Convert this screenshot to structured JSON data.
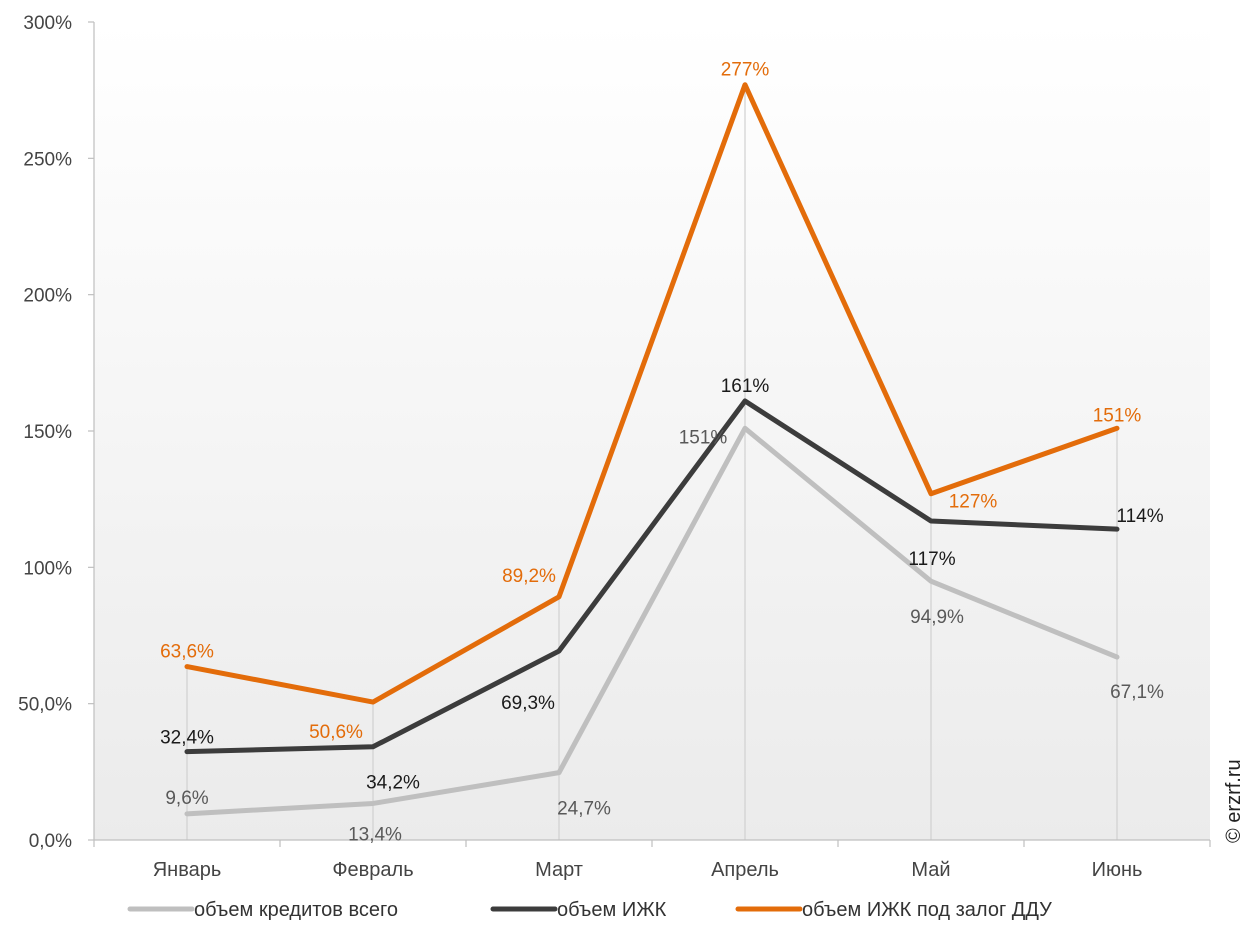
{
  "chart_data": {
    "type": "line",
    "categories": [
      "Январь",
      "Февраль",
      "Март",
      "Апрель",
      "Май",
      "Июнь"
    ],
    "ylim": [
      0,
      300
    ],
    "ytick_values": [
      0,
      50,
      100,
      150,
      200,
      250,
      300
    ],
    "ytick_labels": [
      "0,0%",
      "50,0%",
      "100%",
      "150%",
      "200%",
      "250%",
      "300%"
    ],
    "grid": false,
    "legend_position": "bottom",
    "series": [
      {
        "name": "объем кредитов всего",
        "color": "#bfbfbf",
        "values": [
          9.6,
          13.4,
          24.7,
          151,
          94.9,
          67.1
        ],
        "labels": [
          "9,6%",
          "13,4%",
          "24,7%",
          "151%",
          "94,9%",
          "67,1%"
        ],
        "label_color": "#595959"
      },
      {
        "name": "объем ИЖК",
        "color": "#3c3c3c",
        "values": [
          32.4,
          34.2,
          69.3,
          161,
          117,
          114
        ],
        "labels": [
          "32,4%",
          "34,2%",
          "69,3%",
          "161%",
          "117%",
          "114%"
        ],
        "label_color": "#1a1a1a"
      },
      {
        "name": "объем ИЖК под залог ДДУ",
        "color": "#e36c0a",
        "values": [
          63.6,
          50.6,
          89.2,
          277,
          127,
          151
        ],
        "labels": [
          "63,6%",
          "50,6%",
          "89,2%",
          "277%",
          "127%",
          "151%"
        ],
        "label_color": "#e36c0a"
      }
    ]
  },
  "credit_text": "© erzrf.ru"
}
